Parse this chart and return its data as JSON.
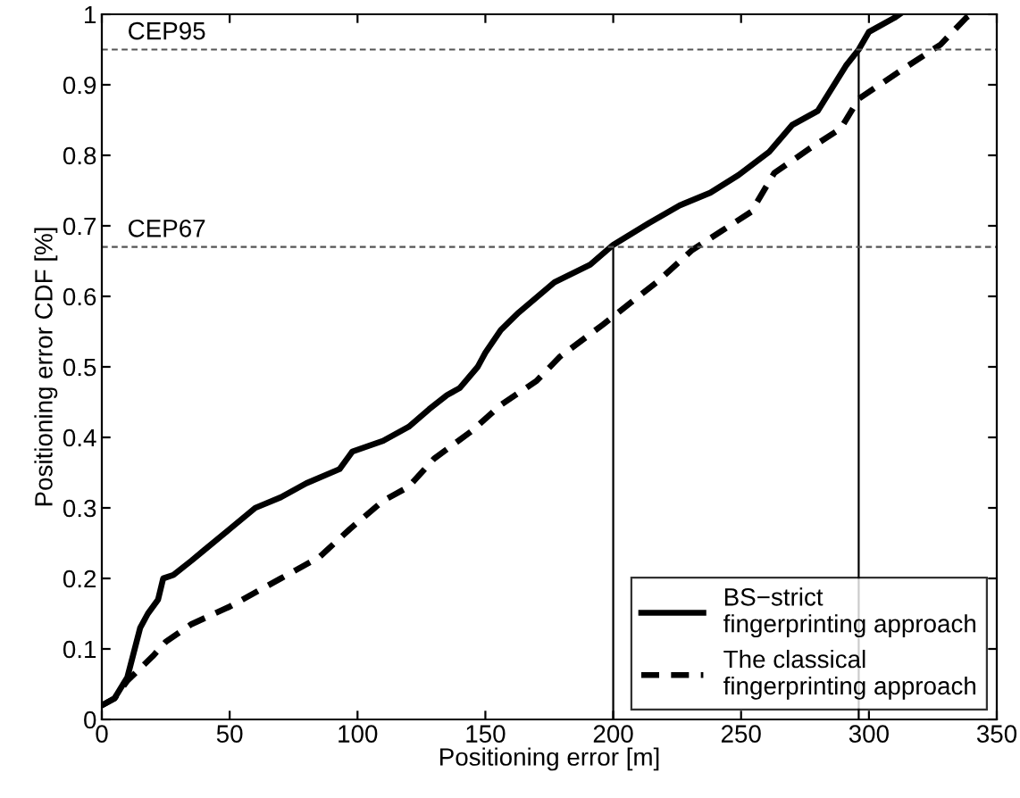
{
  "chart_data": {
    "type": "line",
    "xlabel": "Positioning error [m]",
    "ylabel": "Positioning error CDF [%]",
    "xlim": [
      0,
      350
    ],
    "ylim": [
      0,
      1
    ],
    "xticks": [
      0,
      50,
      100,
      150,
      200,
      250,
      300,
      350
    ],
    "yticks": [
      0,
      0.1,
      0.2,
      0.3,
      0.4,
      0.5,
      0.6,
      0.7,
      0.8,
      0.9,
      1
    ],
    "grid": false,
    "legend": "bottom right",
    "marker": "none",
    "series": [
      {
        "name": "BS−strict\nfingerprinting approach",
        "color": "#000000",
        "line_style": "solid",
        "x": [
          0,
          5,
          10,
          15,
          18,
          22,
          24,
          28,
          35,
          40,
          50,
          60,
          70,
          80,
          93,
          98,
          110,
          120,
          128,
          135,
          140,
          147,
          150,
          156,
          163,
          177,
          191,
          200,
          214,
          226,
          238,
          249,
          261,
          270,
          280,
          291,
          296,
          300,
          310,
          312
        ],
        "values": [
          0.02,
          0.03,
          0.06,
          0.13,
          0.15,
          0.17,
          0.2,
          0.205,
          0.225,
          0.24,
          0.27,
          0.3,
          0.315,
          0.335,
          0.355,
          0.38,
          0.395,
          0.415,
          0.44,
          0.46,
          0.47,
          0.5,
          0.52,
          0.552,
          0.577,
          0.62,
          0.645,
          0.673,
          0.704,
          0.729,
          0.747,
          0.772,
          0.805,
          0.843,
          0.863,
          0.927,
          0.95,
          0.975,
          0.995,
          1
        ]
      },
      {
        "name": "The classical\nfingerprinting approach",
        "color": "#000000",
        "line_style": "dashed",
        "x": [
          0,
          5,
          10,
          20,
          25,
          35,
          50,
          70,
          85,
          97,
          110,
          120,
          130,
          145,
          156,
          170,
          179,
          196,
          217,
          231,
          254,
          263,
          277,
          289,
          296,
          314,
          328,
          338,
          340
        ],
        "values": [
          0.02,
          0.03,
          0.055,
          0.09,
          0.11,
          0.135,
          0.16,
          0.2,
          0.23,
          0.27,
          0.31,
          0.33,
          0.37,
          0.41,
          0.446,
          0.48,
          0.514,
          0.56,
          0.62,
          0.666,
          0.72,
          0.775,
          0.81,
          0.838,
          0.88,
          0.924,
          0.957,
          0.995,
          1
        ]
      },
      {
        "color": "#000000",
        "line_style": "solid",
        "x": [
          200,
          200
        ],
        "values": [
          0,
          0.67
        ]
      },
      {
        "color": "#000000",
        "line_style": "solid",
        "x": [
          296,
          296
        ],
        "values": [
          0,
          0.95
        ]
      }
    ],
    "ref_lines": [
      {
        "axis": "y",
        "value": 0.95,
        "color": "#555555",
        "line_style": "dashed"
      },
      {
        "axis": "y",
        "value": 0.67,
        "color": "#555555",
        "line_style": "dashed"
      }
    ],
    "annotations": [
      {
        "text": "CEP95",
        "x": 10,
        "y": 0.95
      },
      {
        "text": "CEP67",
        "x": 10,
        "y": 0.67
      }
    ]
  }
}
